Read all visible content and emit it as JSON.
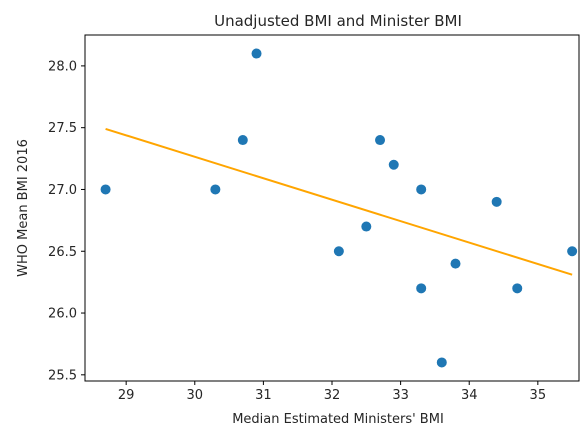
{
  "chart_data": {
    "type": "scatter",
    "title": "Unadjusted BMI and Minister BMI",
    "xlabel": "Median Estimated Ministers' BMI",
    "ylabel": "WHO Mean BMI 2016",
    "xlim": [
      28.4,
      35.6
    ],
    "ylim": [
      25.45,
      28.25
    ],
    "xticks": [
      29,
      30,
      31,
      32,
      33,
      34,
      35
    ],
    "yticks": [
      25.5,
      26.0,
      26.5,
      27.0,
      27.5,
      28.0
    ],
    "xtick_labels": [
      "29",
      "30",
      "31",
      "32",
      "33",
      "34",
      "35"
    ],
    "ytick_labels": [
      "25.5",
      "26.0",
      "26.5",
      "27.0",
      "27.5",
      "28.0"
    ],
    "grid": false,
    "series": [
      {
        "kind": "scatter",
        "color": "#1f77b4",
        "points": [
          {
            "x": 28.7,
            "y": 27.0
          },
          {
            "x": 30.3,
            "y": 27.0
          },
          {
            "x": 30.7,
            "y": 27.4
          },
          {
            "x": 30.9,
            "y": 28.1
          },
          {
            "x": 32.1,
            "y": 26.5
          },
          {
            "x": 32.5,
            "y": 26.7
          },
          {
            "x": 32.7,
            "y": 27.4
          },
          {
            "x": 32.9,
            "y": 27.2
          },
          {
            "x": 33.3,
            "y": 27.0
          },
          {
            "x": 33.3,
            "y": 26.2
          },
          {
            "x": 33.6,
            "y": 25.6
          },
          {
            "x": 33.8,
            "y": 26.4
          },
          {
            "x": 34.4,
            "y": 26.9
          },
          {
            "x": 34.7,
            "y": 26.2
          },
          {
            "x": 35.5,
            "y": 26.5
          }
        ]
      },
      {
        "kind": "line",
        "color": "#ffa500",
        "points": [
          {
            "x": 28.7,
            "y": 27.49
          },
          {
            "x": 35.5,
            "y": 26.31
          }
        ]
      }
    ]
  }
}
